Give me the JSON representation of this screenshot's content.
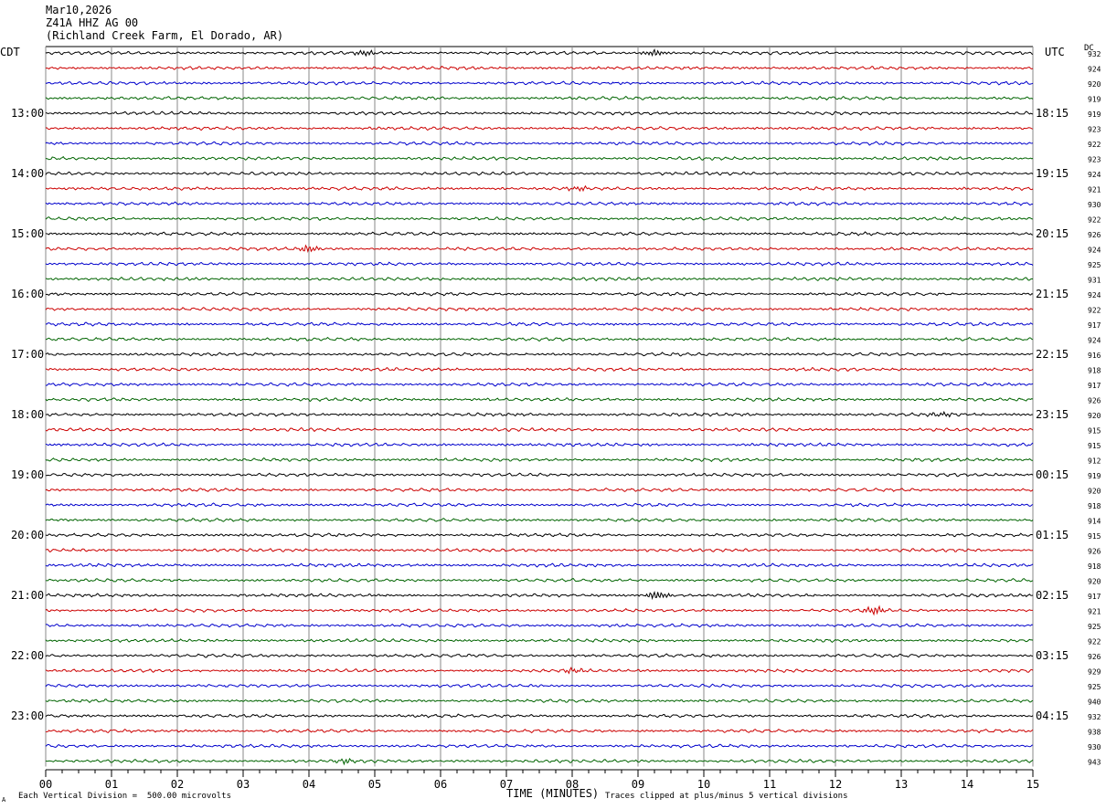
{
  "header": {
    "date": "Mar10,2026",
    "station": "Z41A HHZ AG 00",
    "location": "(Richland Creek Farm, El Dorado, AR)"
  },
  "left_tz": "CDT",
  "right_tz": "UTC",
  "dc_label": "DC",
  "footer": {
    "scale_note": "Each Vertical Division =  500.00 microvolts",
    "clip_note": "Traces clipped at plus/minus 5 vertical divisions",
    "corner_mark": "A"
  },
  "colors": {
    "trace_cycle": [
      "#000000",
      "#cc0000",
      "#0000cc",
      "#006400"
    ],
    "grid": "#888888"
  },
  "chart_data": {
    "type": "line",
    "xlabel": "TIME (MINUTES)",
    "xlim": [
      0,
      15
    ],
    "x_ticks": [
      "00",
      "01",
      "02",
      "03",
      "04",
      "05",
      "06",
      "07",
      "08",
      "09",
      "10",
      "11",
      "12",
      "13",
      "14",
      "15"
    ],
    "left_hour_labels": [
      "13:00",
      "14:00",
      "15:00",
      "16:00",
      "17:00",
      "18:00",
      "19:00",
      "20:00",
      "21:00",
      "22:00",
      "23:00"
    ],
    "right_hour_labels": [
      "18:15",
      "19:15",
      "20:15",
      "21:15",
      "22:15",
      "23:15",
      "00:15",
      "01:15",
      "02:15",
      "03:15",
      "04:15"
    ],
    "trace_dc_values": [
      "932",
      "924",
      "920",
      "919",
      "919",
      "923",
      "922",
      "923",
      "924",
      "921",
      "930",
      "922",
      "926",
      "924",
      "925",
      "931",
      "924",
      "922",
      "917",
      "924",
      "916",
      "918",
      "917",
      "926",
      "920",
      "915",
      "915",
      "912",
      "919",
      "920",
      "918",
      "914",
      "915",
      "926",
      "918",
      "920",
      "917",
      "921",
      "925",
      "922",
      "926",
      "929",
      "925",
      "940",
      "932",
      "938",
      "930",
      "943"
    ],
    "events": [
      {
        "trace": 0,
        "minute": 4.85,
        "amp": 1.6
      },
      {
        "trace": 0,
        "minute": 9.25,
        "amp": 1.8
      },
      {
        "trace": 9,
        "minute": 8.1,
        "amp": 1.2
      },
      {
        "trace": 13,
        "minute": 4.0,
        "amp": 2.0
      },
      {
        "trace": 24,
        "minute": 13.6,
        "amp": 1.3
      },
      {
        "trace": 36,
        "minute": 9.3,
        "amp": 2.2
      },
      {
        "trace": 37,
        "minute": 12.6,
        "amp": 2.4
      },
      {
        "trace": 41,
        "minute": 8.0,
        "amp": 1.2
      },
      {
        "trace": 47,
        "minute": 4.55,
        "amp": 1.4
      }
    ]
  }
}
